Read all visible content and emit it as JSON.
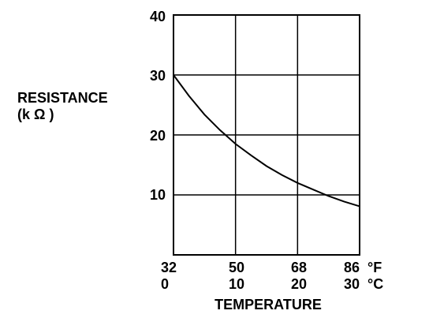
{
  "chart_data": {
    "type": "line",
    "ylabel_line1": "RESISTANCE",
    "ylabel_line2": "(k Ω )",
    "xlabel": "TEMPERATURE",
    "ylim": [
      0,
      40
    ],
    "y_ticks": [
      "10",
      "20",
      "30",
      "40"
    ],
    "x_ticks_f": [
      "32",
      "50",
      "68",
      "86"
    ],
    "x_ticks_c": [
      "0",
      "10",
      "20",
      "30"
    ],
    "unit_f": "°F",
    "unit_c": "°C",
    "xlim_c": [
      0,
      30
    ],
    "grid": true,
    "series": [
      {
        "x": [
          0,
          2.5,
          5,
          7.5,
          10,
          12.5,
          15,
          17.5,
          20,
          22.5,
          25,
          27.5,
          30
        ],
        "y": [
          30,
          26.5,
          23.4,
          20.8,
          18.5,
          16.6,
          14.8,
          13.3,
          12.0,
          10.9,
          9.8,
          8.9,
          8.1
        ]
      }
    ]
  }
}
